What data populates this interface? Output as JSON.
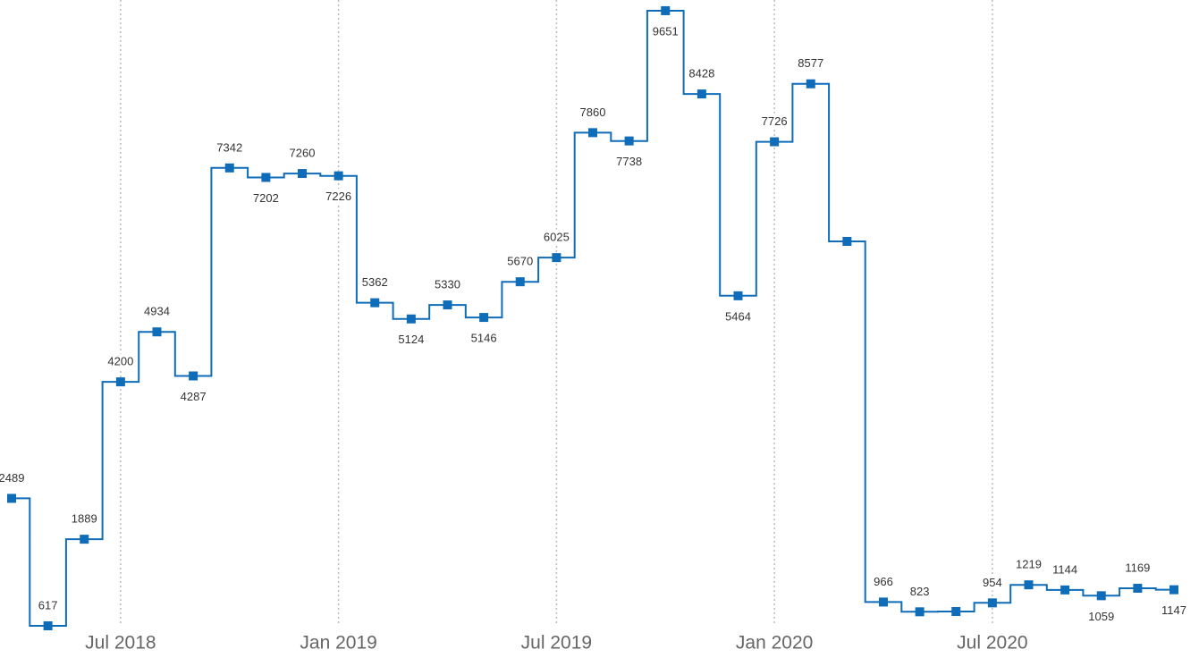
{
  "chart_data": {
    "type": "step",
    "x": [
      "2018-04",
      "2018-05",
      "2018-06",
      "2018-07",
      "2018-08",
      "2018-09",
      "2018-10",
      "2018-11",
      "2018-12",
      "2019-01",
      "2019-02",
      "2019-03",
      "2019-04",
      "2019-05",
      "2019-06",
      "2019-07",
      "2019-08",
      "2019-09",
      "2019-10",
      "2019-11",
      "2019-12",
      "2020-01",
      "2020-02",
      "2020-03",
      "2020-04",
      "2020-05",
      "2020-06",
      "2020-07",
      "2020-08",
      "2020-09",
      "2020-10",
      "2020-11",
      "2020-12"
    ],
    "series": [
      {
        "color": "#0f6cb8",
        "values": [
          2489,
          617,
          1889,
          4200,
          4934,
          4287,
          7342,
          7202,
          7260,
          7226,
          5362,
          5124,
          5330,
          5146,
          5670,
          6025,
          7860,
          7738,
          9651,
          8428,
          5464,
          7726,
          8577,
          6263,
          966,
          823,
          827,
          954,
          1219,
          1144,
          1059,
          1169,
          1147
        ],
        "value_labels": [
          "2489",
          "617",
          "1889",
          "4200",
          "4934",
          "4287",
          "7342",
          "7202",
          "7260",
          "7226",
          "5362",
          "5124",
          "5330",
          "5146",
          "5670",
          "6025",
          "7860",
          "7738",
          "9651",
          "8428",
          "5464",
          "7726",
          "8577",
          null,
          "966",
          "823",
          null,
          "954",
          "1219",
          "1144",
          "1059",
          "1169",
          "1147"
        ]
      }
    ],
    "xticks": [
      {
        "value": "2018-07",
        "label": "Jul 2018"
      },
      {
        "value": "2019-01",
        "label": "Jan 2019"
      },
      {
        "value": "2019-07",
        "label": "Jul 2019"
      },
      {
        "value": "2020-01",
        "label": "Jan 2020"
      },
      {
        "value": "2020-07",
        "label": "Jul 2020"
      }
    ],
    "ylim": [
      0,
      9808
    ],
    "grid": true
  }
}
